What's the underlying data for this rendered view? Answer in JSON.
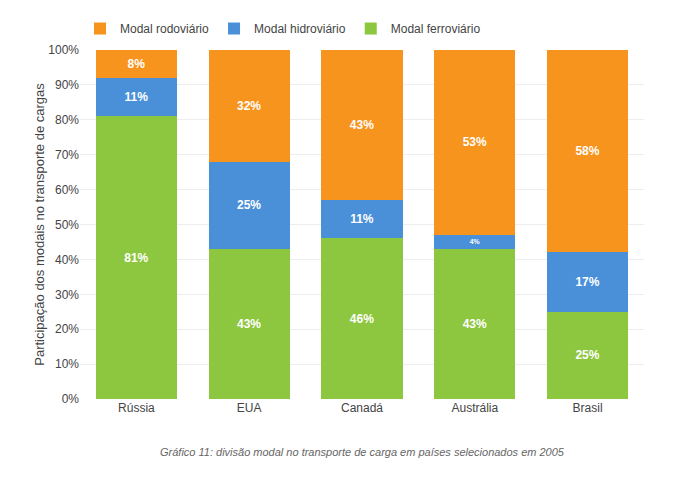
{
  "chart_data": {
    "type": "bar",
    "stacked": true,
    "categories": [
      "Rússia",
      "EUA",
      "Canadá",
      "Austrália",
      "Brasil"
    ],
    "series": [
      {
        "name": "Modal ferroviário",
        "color": "#8dc63f",
        "values": [
          81,
          43,
          46,
          43,
          25
        ],
        "value_labels": [
          "81%",
          "43%",
          "46%",
          "43%",
          "25%"
        ]
      },
      {
        "name": "Modal hidroviário",
        "color": "#4a90d9",
        "values": [
          11,
          25,
          11,
          4,
          17
        ],
        "value_labels": [
          "11%",
          "25%",
          "11%",
          "4%",
          "17%"
        ]
      },
      {
        "name": "Modal rodoviário",
        "color": "#f7941d",
        "values": [
          8,
          32,
          43,
          53,
          58
        ],
        "value_labels": [
          "8%",
          "32%",
          "43%",
          "53%",
          "58%"
        ]
      }
    ],
    "data_labels": true,
    "ylabel": "Participação dos modais no transporte de cargas",
    "caption": "Gráfico 11: divisão modal no transporte de carga em países selecionados em 2005",
    "ylim": [
      0,
      100
    ],
    "yticks": [
      {
        "value": 0,
        "label": "0%"
      },
      {
        "value": 10,
        "label": "10%"
      },
      {
        "value": 20,
        "label": "20%"
      },
      {
        "value": 30,
        "label": "30%"
      },
      {
        "value": 40,
        "label": "40%"
      },
      {
        "value": 50,
        "label": "50%"
      },
      {
        "value": 60,
        "label": "60%"
      },
      {
        "value": 70,
        "label": "70%"
      },
      {
        "value": 80,
        "label": "80%"
      },
      {
        "value": 90,
        "label": "90%"
      },
      {
        "value": 100,
        "label": "100%"
      }
    ],
    "grid": true,
    "legend": "top"
  }
}
